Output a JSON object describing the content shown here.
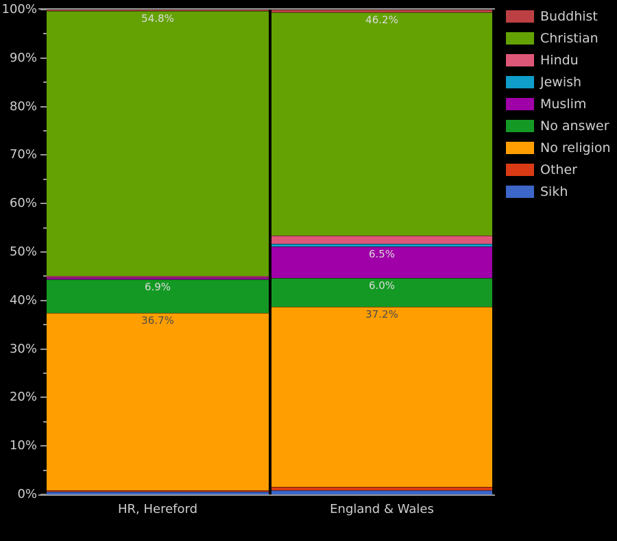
{
  "colors": {
    "background": "#000000",
    "axis_line": "#9a9a9a",
    "tick_text": "#cfcfcf",
    "legend_text": "#cfcfcf",
    "category_text": "#cfcfcf",
    "label_light": "#dcdcdc",
    "label_dark": "#4d4d4d"
  },
  "chart_data": {
    "type": "bar",
    "stacking": "percent",
    "categories": [
      "HR, Hereford",
      "England & Wales"
    ],
    "series": [
      {
        "name": "Buddhist",
        "color": "#bc4043",
        "values": [
          0.3,
          0.5
        ],
        "data_labels": [
          "",
          ""
        ]
      },
      {
        "name": "Christian",
        "color": "#64a204",
        "values": [
          54.8,
          46.2
        ],
        "data_labels": [
          "54.8%",
          "46.2%"
        ]
      },
      {
        "name": "Hindu",
        "color": "#df5778",
        "values": [
          0.2,
          1.7
        ],
        "data_labels": [
          "",
          ""
        ]
      },
      {
        "name": "Jewish",
        "color": "#0f9ec9",
        "values": [
          0.1,
          0.5
        ],
        "data_labels": [
          "",
          ""
        ]
      },
      {
        "name": "Muslim",
        "color": "#a000a8",
        "values": [
          0.4,
          6.5
        ],
        "data_labels": [
          "",
          "6.5%"
        ]
      },
      {
        "name": "No answer",
        "color": "#149a24",
        "values": [
          6.9,
          6.0
        ],
        "data_labels": [
          "6.9%",
          "6.0%"
        ]
      },
      {
        "name": "No religion",
        "color": "#ff9e00",
        "values": [
          36.7,
          37.2
        ],
        "data_labels": [
          "36.7%",
          "37.2%"
        ],
        "label_shade": "dark"
      },
      {
        "name": "Other",
        "color": "#da3b14",
        "values": [
          0.3,
          0.6
        ],
        "data_labels": [
          "",
          ""
        ]
      },
      {
        "name": "Sikh",
        "color": "#3c66c8",
        "values": [
          0.5,
          0.9
        ],
        "data_labels": [
          "",
          ""
        ]
      }
    ],
    "y_axis": {
      "tick_labels": [
        "0%",
        "10%",
        "20%",
        "30%",
        "40%",
        "50%",
        "60%",
        "70%",
        "80%",
        "90%",
        "100%"
      ],
      "range": [
        0,
        100
      ],
      "minor_tick_step": 5
    },
    "legend_position": "top-right",
    "grid": "top-and-bottom-lines-only"
  }
}
